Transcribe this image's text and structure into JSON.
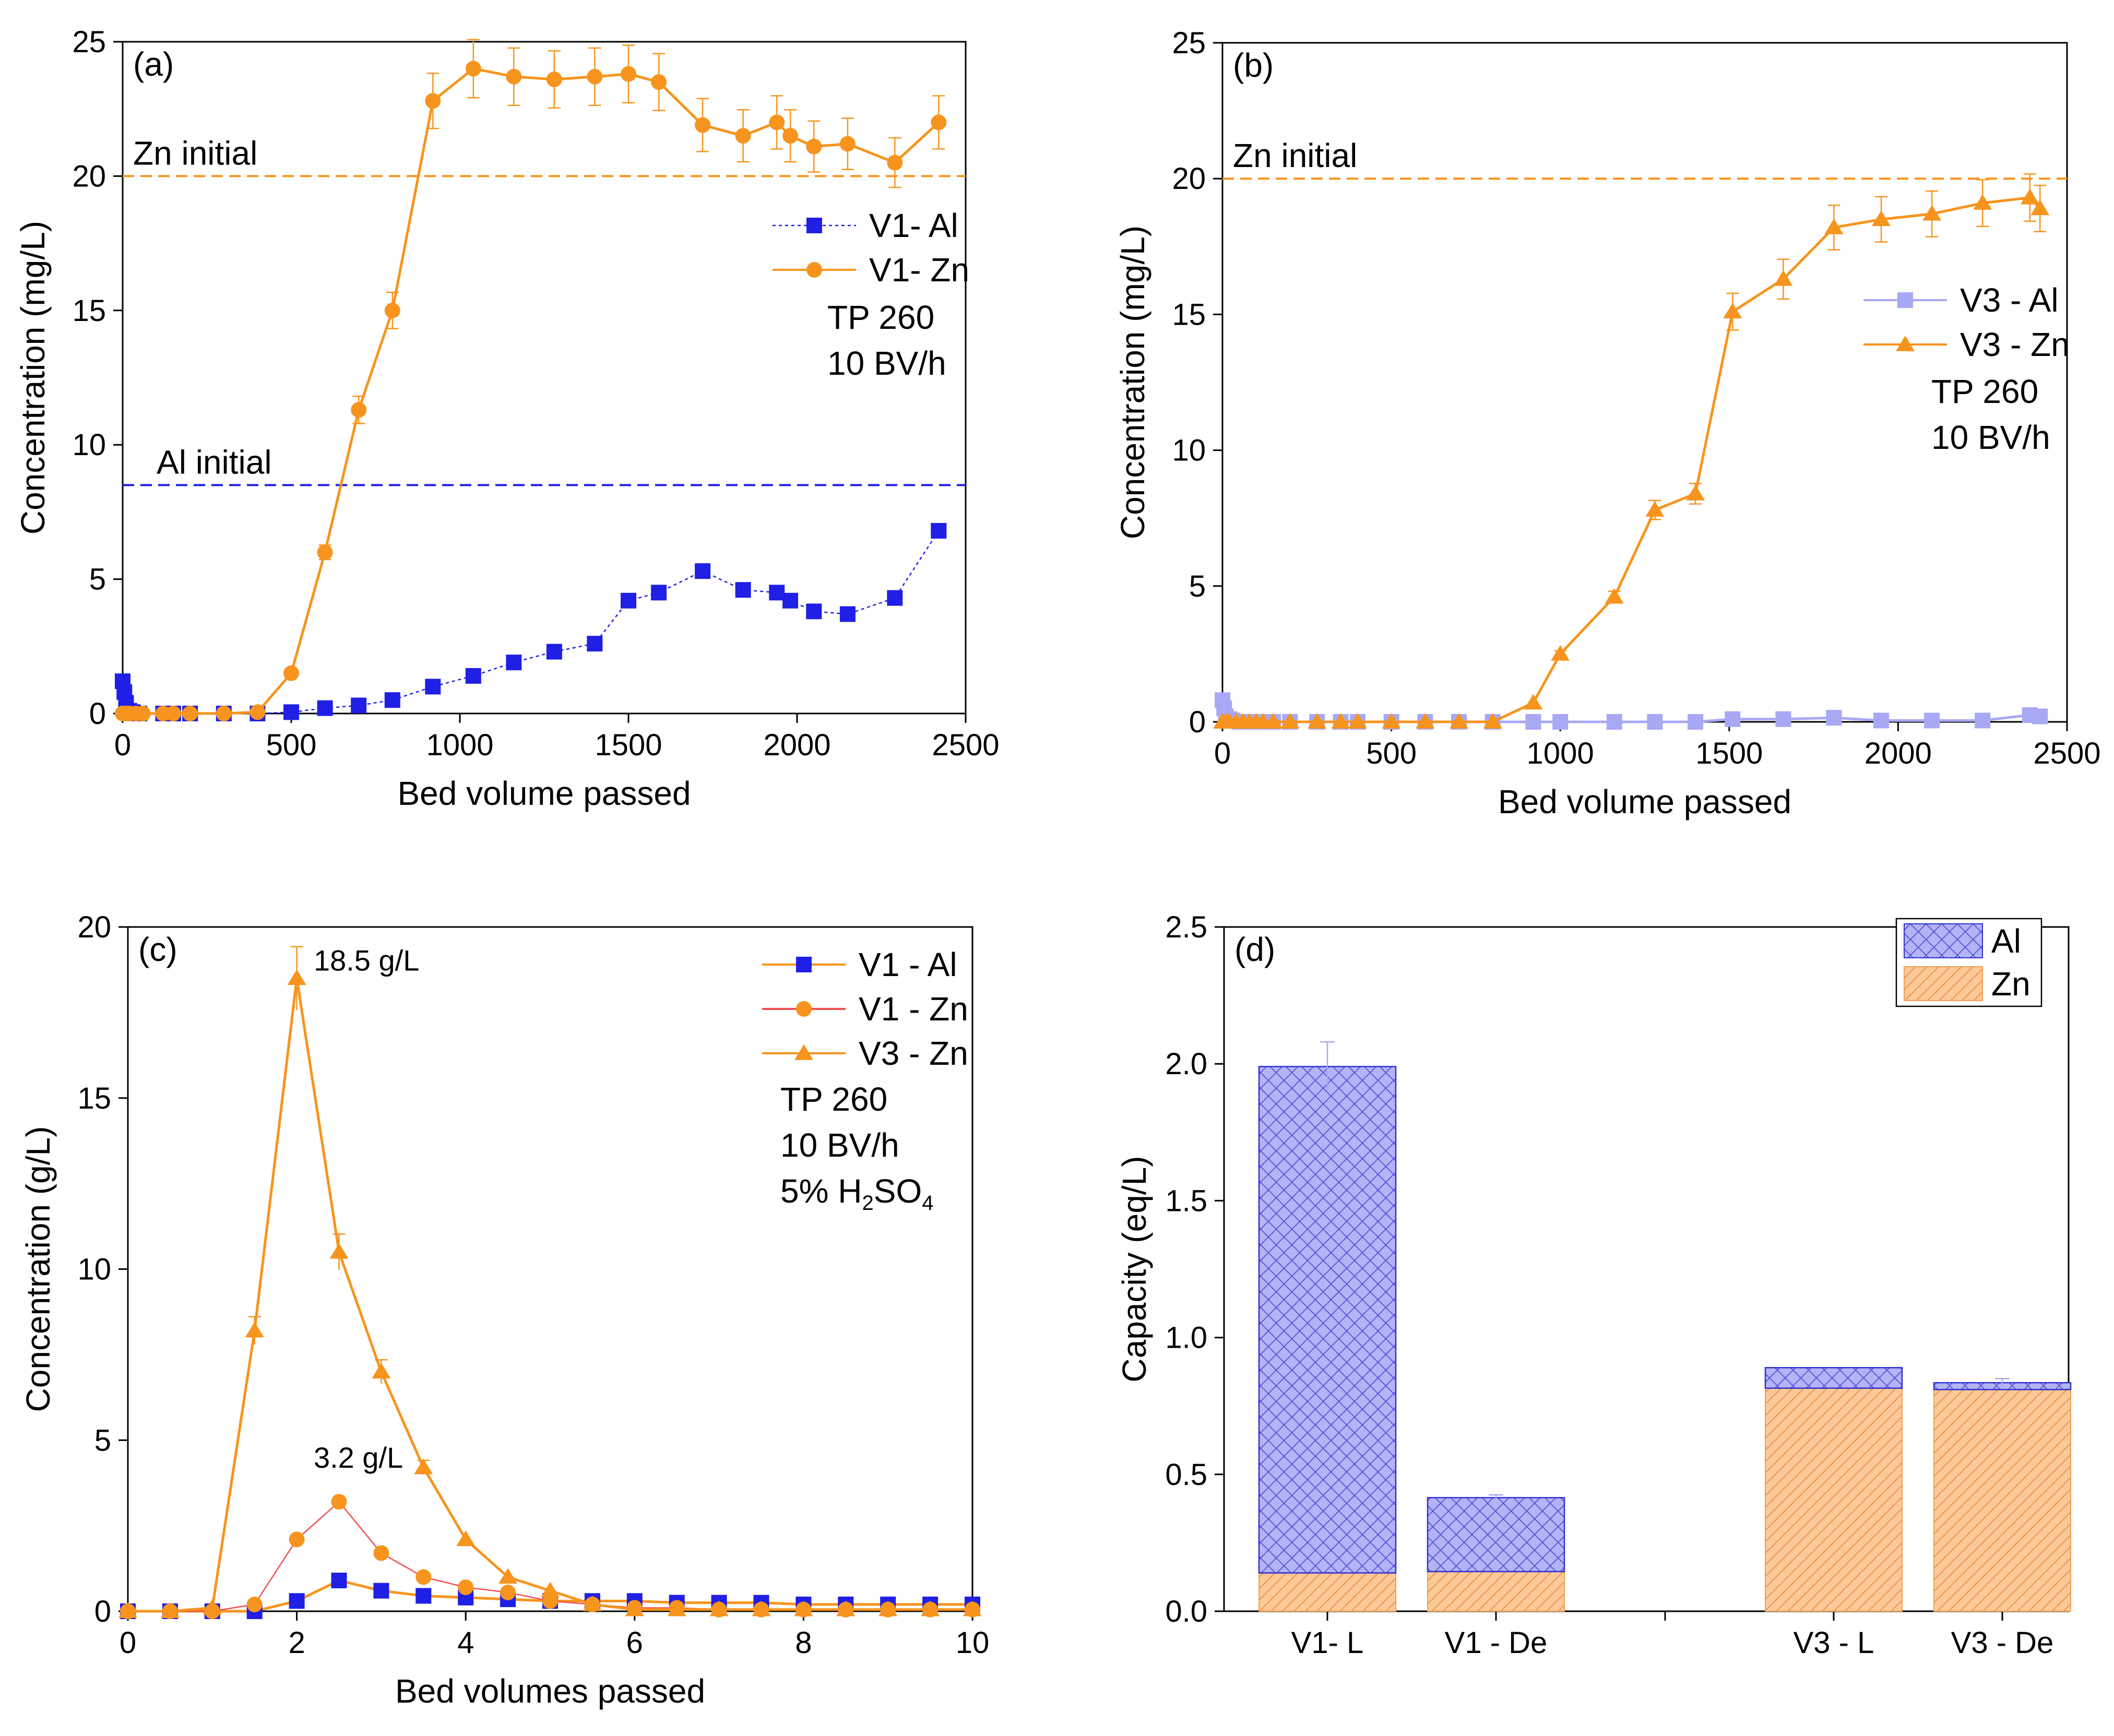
{
  "colors": {
    "zn": "#F7941D",
    "al": "#1F1FE6",
    "al_light": "#A8A8F4",
    "zn_light": "#F9C48C",
    "al_bar": "#B3B3F5",
    "zn_bar": "#FBC898"
  },
  "chart_data": [
    {
      "id": "a",
      "type": "line",
      "panel_label": "(a)",
      "xlabel": "Bed volume passed",
      "ylabel": "Concentration (mg/L)",
      "xlim": [
        0,
        2500
      ],
      "ylim": [
        0,
        25
      ],
      "xticks": [
        0,
        500,
        1000,
        1500,
        2000,
        2500
      ],
      "yticks": [
        0,
        5,
        10,
        15,
        20,
        25
      ],
      "reference_lines": [
        {
          "label": "Zn initial",
          "value": 20,
          "color": "#F7941D"
        },
        {
          "label": "Al initial",
          "value": 8.5,
          "color": "#1F1FE6"
        }
      ],
      "annotations": [
        "TP 260",
        "10 BV/h"
      ],
      "series": [
        {
          "name": "V1- Al",
          "marker": "square",
          "style": "dotted",
          "color": "#1F1FE6",
          "x": [
            0,
            5,
            10,
            20,
            30,
            50,
            120,
            150,
            200,
            300,
            400,
            500,
            600,
            700,
            800,
            920,
            1040,
            1160,
            1280,
            1400,
            1500,
            1590,
            1720,
            1840,
            1940,
            1980,
            2050,
            2150,
            2290,
            2420
          ],
          "y": [
            1.2,
            0.8,
            0.4,
            0.1,
            0.05,
            0.0,
            0.0,
            0.0,
            0.0,
            0.0,
            0.0,
            0.05,
            0.2,
            0.3,
            0.5,
            1.0,
            1.4,
            1.9,
            2.3,
            2.6,
            4.2,
            4.5,
            5.3,
            4.6,
            4.5,
            4.2,
            3.8,
            3.7,
            4.3,
            6.8
          ]
        },
        {
          "name": "V1- Zn",
          "marker": "circle",
          "style": "solid",
          "color": "#F7941D",
          "x": [
            0,
            10,
            20,
            40,
            60,
            120,
            150,
            200,
            300,
            400,
            500,
            600,
            700,
            800,
            920,
            1040,
            1160,
            1280,
            1400,
            1500,
            1590,
            1720,
            1840,
            1940,
            1980,
            2050,
            2150,
            2290,
            2420
          ],
          "y": [
            0.0,
            0.0,
            0.0,
            0.0,
            0.0,
            0.0,
            0.0,
            0.0,
            0.0,
            0.05,
            1.5,
            6.0,
            11.3,
            15.0,
            22.8,
            24.0,
            23.7,
            23.6,
            23.7,
            23.8,
            23.5,
            21.9,
            21.5,
            22.0,
            21.5,
            21.1,
            21.2,
            20.5,
            22.0
          ]
        }
      ]
    },
    {
      "id": "b",
      "type": "line",
      "panel_label": "(b)",
      "xlabel": "Bed volume passed",
      "ylabel": "Concentration (mg/L)",
      "xlim": [
        0,
        2500
      ],
      "ylim": [
        0,
        25
      ],
      "xticks": [
        0,
        500,
        1000,
        1500,
        2000,
        2500
      ],
      "yticks": [
        0,
        5,
        10,
        15,
        20,
        25
      ],
      "reference_lines": [
        {
          "label": "Zn initial",
          "value": 20,
          "color": "#F7941D"
        }
      ],
      "annotations": [
        "TP 260",
        "10 BV/h"
      ],
      "series": [
        {
          "name": "V3 - Al",
          "marker": "square",
          "style": "solid",
          "color": "#A8A8F4",
          "x": [
            0,
            5,
            10,
            20,
            30,
            50,
            80,
            120,
            150,
            200,
            280,
            350,
            400,
            500,
            600,
            700,
            800,
            920,
            1000,
            1160,
            1280,
            1400,
            1510,
            1660,
            1810,
            1950,
            2100,
            2250,
            2390,
            2420
          ],
          "y": [
            0.8,
            0.5,
            0.2,
            0.1,
            0.05,
            0.0,
            0.0,
            0.0,
            0.0,
            0.0,
            0.0,
            0.0,
            0.0,
            0.0,
            0.0,
            0.0,
            0.0,
            0.0,
            0.0,
            0.0,
            0.0,
            0.0,
            0.1,
            0.1,
            0.15,
            0.05,
            0.05,
            0.05,
            0.25,
            0.2
          ]
        },
        {
          "name": "V3 - Zn",
          "marker": "triangle",
          "style": "solid",
          "color": "#F7941D",
          "x": [
            0,
            10,
            20,
            40,
            60,
            80,
            100,
            120,
            150,
            200,
            280,
            350,
            400,
            500,
            600,
            700,
            800,
            920,
            1000,
            1160,
            1280,
            1400,
            1510,
            1660,
            1810,
            1950,
            2100,
            2250,
            2390,
            2420
          ],
          "y": [
            0.0,
            0.0,
            0.0,
            0.0,
            0.0,
            0.0,
            0.0,
            0.0,
            0.0,
            0.0,
            0.0,
            0.0,
            0.0,
            0.0,
            0.0,
            0.0,
            0.0,
            0.7,
            2.5,
            4.6,
            7.8,
            8.4,
            15.1,
            16.3,
            18.2,
            18.5,
            18.7,
            19.1,
            19.3,
            18.9
          ]
        }
      ]
    },
    {
      "id": "c",
      "type": "line",
      "panel_label": "(c)",
      "xlabel": "Bed volumes passed",
      "ylabel": "Concentration (g/L)",
      "xlim": [
        0,
        10
      ],
      "ylim": [
        0,
        20
      ],
      "xticks": [
        0,
        2,
        4,
        6,
        8,
        10
      ],
      "yticks": [
        0,
        5,
        10,
        15,
        20
      ],
      "annotations": [
        "TP 260",
        "10 BV/h",
        "5% H2SO4"
      ],
      "peak_labels": [
        "18.5 g/L",
        "3.2 g/L"
      ],
      "series": [
        {
          "name": "V1 - Al",
          "marker": "square",
          "style": "solid",
          "color": "#1F1FE6",
          "line_color": "#F7941D",
          "x": [
            0,
            0.5,
            1,
            1.5,
            2,
            2.5,
            3,
            3.5,
            4,
            4.5,
            5,
            5.5,
            6,
            6.5,
            7,
            7.5,
            8,
            8.5,
            9,
            9.5,
            10
          ],
          "y": [
            0,
            0,
            0,
            0.0,
            0.3,
            0.9,
            0.6,
            0.45,
            0.4,
            0.35,
            0.3,
            0.3,
            0.3,
            0.25,
            0.25,
            0.25,
            0.2,
            0.2,
            0.2,
            0.2,
            0.2
          ]
        },
        {
          "name": "V1 - Zn",
          "marker": "circle",
          "style": "thin",
          "color": "#F7941D",
          "line_color": "#F05050",
          "x": [
            0,
            0.5,
            1,
            1.5,
            2,
            2.5,
            3,
            3.5,
            4,
            4.5,
            5,
            5.5,
            6,
            6.5,
            7,
            7.5,
            8,
            8.5,
            9,
            9.5,
            10
          ],
          "y": [
            0,
            0,
            0,
            0.2,
            2.1,
            3.2,
            1.7,
            1.0,
            0.7,
            0.55,
            0.3,
            0.2,
            0.1,
            0.1,
            0.05,
            0.05,
            0.05,
            0.05,
            0.05,
            0.05,
            0.05
          ]
        },
        {
          "name": "V3 - Zn",
          "marker": "triangle",
          "style": "solid",
          "color": "#F7941D",
          "line_color": "#F7941D",
          "x": [
            0,
            0.5,
            1,
            1.5,
            2,
            2.5,
            3,
            3.5,
            4,
            4.5,
            5,
            5.5,
            6,
            6.5,
            7,
            7.5,
            8,
            8.5,
            9,
            9.5,
            10
          ],
          "y": [
            0,
            0,
            0.1,
            8.2,
            18.5,
            10.5,
            7.0,
            4.2,
            2.1,
            1.0,
            0.6,
            0.2,
            0.05,
            0.05,
            0.05,
            0.05,
            0.05,
            0.05,
            0.05,
            0.05,
            0.05
          ]
        }
      ]
    },
    {
      "id": "d",
      "type": "bar",
      "stacked": true,
      "panel_label": "(d)",
      "xlabel": "",
      "ylabel": "Capacity (eq/L)",
      "ylim": [
        0,
        2.5
      ],
      "yticks": [
        "0.0",
        "0.5",
        "1.0",
        "1.5",
        "2.0",
        "2.5"
      ],
      "categories": [
        "V1- L",
        "V1 - De",
        "V3 - L",
        "V3 - De"
      ],
      "series": [
        {
          "name": "Zn",
          "values": [
            0.14,
            0.145,
            0.815,
            0.81
          ],
          "color": "#FBC898"
        },
        {
          "name": "Al",
          "values": [
            1.85,
            0.27,
            0.075,
            0.025
          ],
          "color": "#B3B3F5"
        }
      ],
      "totals": [
        1.99,
        0.415,
        0.89,
        0.835
      ],
      "errors": [
        0.09,
        0.01,
        0.0,
        0.015
      ]
    }
  ]
}
